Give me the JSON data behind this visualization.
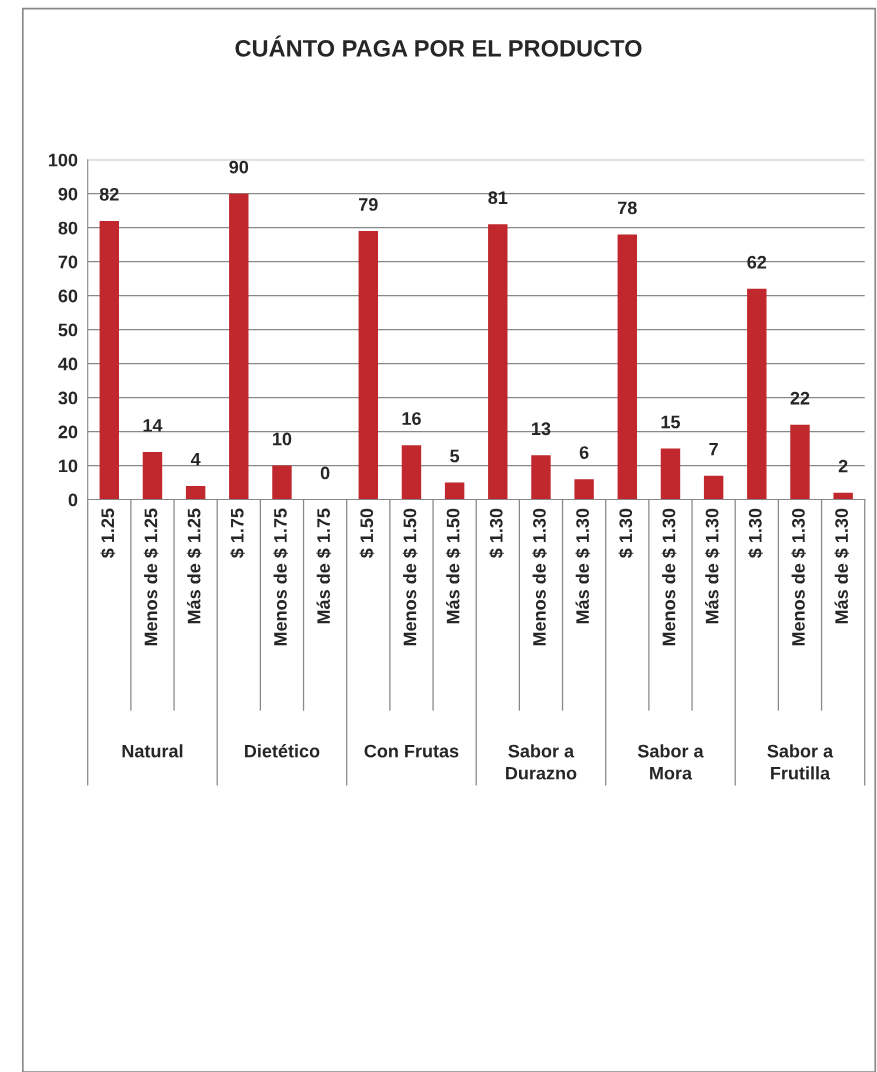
{
  "chart_data": {
    "type": "bar",
    "title": "CUÁNTO PAGA POR EL PRODUCTO",
    "categories": [
      "$ 1.25",
      "Menos de $ 1.25",
      "Más de $ 1.25",
      "$ 1.75",
      "Menos de $ 1.75",
      "Más de $ 1.75",
      "$ 1.50",
      "Menos de $ 1.50",
      "Más de $ 1.50",
      "$ 1.30",
      "Menos de $ 1.30",
      "Más de $ 1.30",
      "$ 1.30",
      "Menos de $ 1.30",
      "Más de $ 1.30",
      "$ 1.30",
      "Menos de $ 1.30",
      "Más de $ 1.30"
    ],
    "values": [
      82,
      14,
      4,
      90,
      10,
      0,
      79,
      16,
      5,
      81,
      13,
      6,
      78,
      15,
      7,
      62,
      22,
      2
    ],
    "color": "#c0282d",
    "ylim": [
      0,
      100
    ],
    "yticks": [
      0,
      10,
      20,
      30,
      40,
      50,
      60,
      70,
      80,
      90,
      100
    ],
    "grid": "y",
    "data_labels": true,
    "legend": false,
    "annotations": [
      "Natural",
      "Dietético",
      "Con Frutas",
      "Sabor a\nDurazno",
      "Sabor a\nMora",
      "Sabor a\nFrutilla"
    ]
  }
}
